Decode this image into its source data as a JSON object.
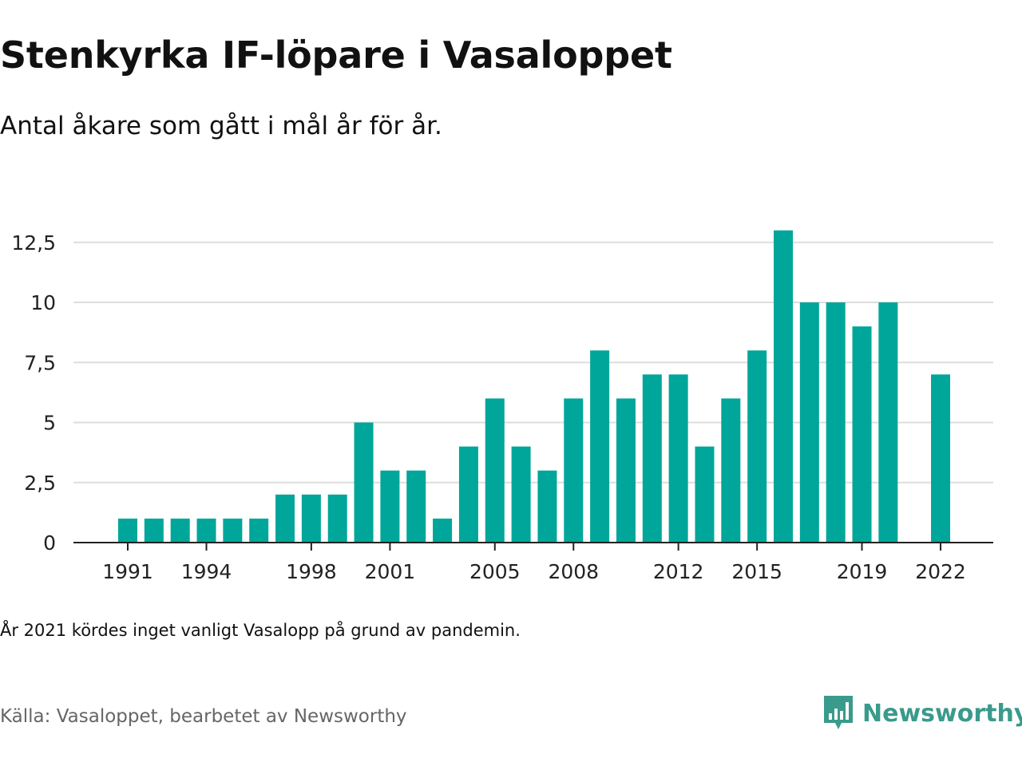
{
  "title": "Stenkyrka IF-löpare i Vasaloppet",
  "subtitle": "Antal åkare som gått i mål år för år.",
  "note": "År 2021 kördes inget vanligt Vasalopp på grund av pandemin.",
  "source": "Källa: Vasaloppet, bearbetet av Newsworthy",
  "logo": {
    "text": "Newsworthy",
    "icon": "newsworthy-logo-icon",
    "color": "#3a9a8c"
  },
  "colors": {
    "bar": "#00a69a",
    "grid": "#dddddd",
    "axis": "#222222"
  },
  "chart_data": {
    "type": "bar",
    "x": [
      1991,
      1992,
      1993,
      1994,
      1995,
      1996,
      1997,
      1998,
      1999,
      2000,
      2001,
      2002,
      2003,
      2004,
      2005,
      2006,
      2007,
      2008,
      2009,
      2010,
      2011,
      2012,
      2013,
      2014,
      2015,
      2016,
      2017,
      2018,
      2019,
      2020,
      2021,
      2022
    ],
    "values": [
      1,
      1,
      1,
      1,
      1,
      1,
      2,
      2,
      2,
      5,
      3,
      3,
      1,
      4,
      6,
      4,
      3,
      6,
      8,
      6,
      7,
      7,
      4,
      6,
      8,
      13,
      10,
      10,
      9,
      10,
      null,
      7
    ],
    "x_tick_labels": [
      "1991",
      "1994",
      "1998",
      "2001",
      "2005",
      "2008",
      "2012",
      "2015",
      "2019",
      "2022"
    ],
    "y_ticks": [
      0,
      2.5,
      5,
      7.5,
      10,
      12.5
    ],
    "y_tick_labels": [
      "0",
      "2,5",
      "5",
      "7,5",
      "10",
      "12,5"
    ],
    "ylim": [
      0,
      13
    ],
    "grid": true,
    "legend": "none"
  }
}
